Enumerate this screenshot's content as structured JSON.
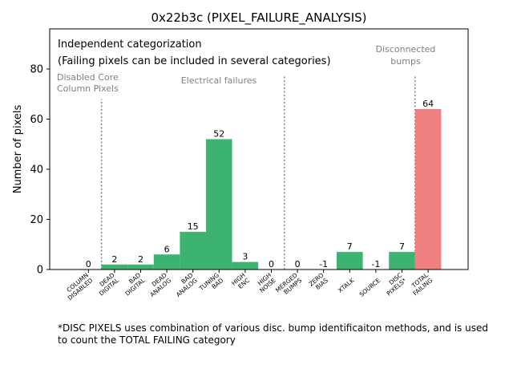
{
  "chart_data": {
    "type": "bar",
    "title": "0x22b3c (PIXEL_FAILURE_ANALYSIS)",
    "ylabel": "Number of pixels",
    "xlabel": "",
    "ylim": [
      0,
      96
    ],
    "yticks": [
      0,
      20,
      40,
      60,
      80
    ],
    "categories": [
      "COLUMN\nDISABLED",
      "DEAD\nDIGITAL",
      "BAD\nDIGITAL",
      "DEAD\nANALOG",
      "BAD\nANALOG",
      "TUNING\nBAD",
      "HIGH\nENC",
      "HIGH\nNOISE",
      "MERGED\nBUMPS",
      "ZERO\nBIAS",
      "XTALK",
      "SOURCE",
      "DISC\nPIXELS*",
      "TOTAL\nFAILING"
    ],
    "values": [
      0,
      2,
      2,
      6,
      15,
      52,
      3,
      0,
      0,
      -1,
      7,
      -1,
      7,
      64
    ],
    "bar_colors": [
      "#3cb371",
      "#3cb371",
      "#3cb371",
      "#3cb371",
      "#3cb371",
      "#3cb371",
      "#3cb371",
      "#3cb371",
      "#3cb371",
      "#3cb371",
      "#3cb371",
      "#3cb371",
      "#3cb371",
      "#f08080"
    ],
    "annotations": {
      "header_line1": "Independent categorization",
      "header_line2": "(Failing pixels can be included in several categories)",
      "disabled_core": [
        "Disabled Core",
        "Column Pixels"
      ],
      "electrical": "Electrical failures",
      "disconnected": [
        "Disconnected",
        "bumps"
      ]
    },
    "footnote_line1": "*DISC PIXELS uses combination of various disc. bump identificaiton methods, and is used",
    "footnote_line2": "to count the TOTAL FAILING category"
  }
}
